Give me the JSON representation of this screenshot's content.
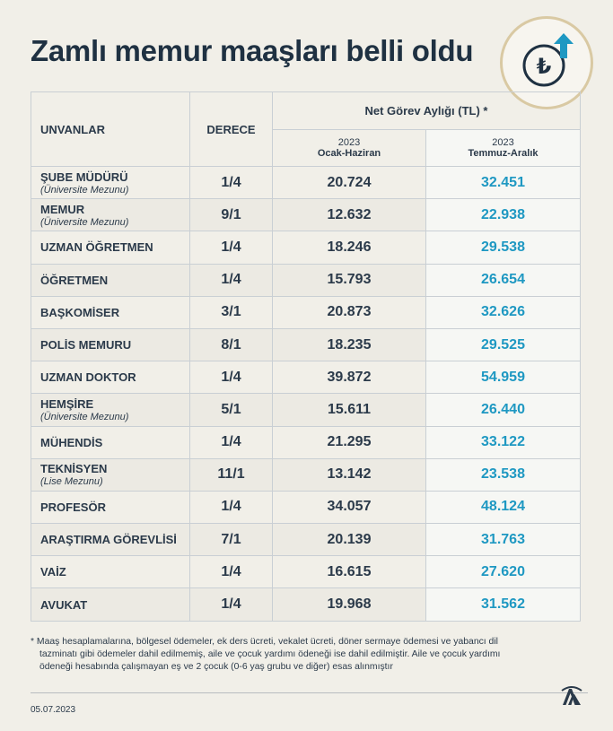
{
  "header": {
    "title": "Zamlı memur maaşları belli oldu"
  },
  "badge": {
    "symbol": "₺",
    "icon": "lira-up-icon",
    "accent": "#1e98c2"
  },
  "table": {
    "col_title": "UNVANLAR",
    "col_grade": "DERECE",
    "col_salary_group": "Net Görev Aylığı (TL) *",
    "period1_year": "2023",
    "period1_label": "Ocak-Haziran",
    "period2_year": "2023",
    "period2_label": "Temmuz-Aralık",
    "rows": [
      {
        "title": "ŞUBE MÜDÜRÜ",
        "note": "(Üniversite Mezunu)",
        "grade": "1/4",
        "old": "20.724",
        "new": "32.451"
      },
      {
        "title": "MEMUR",
        "note": "(Üniversite Mezunu)",
        "grade": "9/1",
        "old": "12.632",
        "new": "22.938"
      },
      {
        "title": "UZMAN ÖĞRETMEN",
        "note": "",
        "grade": "1/4",
        "old": "18.246",
        "new": "29.538"
      },
      {
        "title": "ÖĞRETMEN",
        "note": "",
        "grade": "1/4",
        "old": "15.793",
        "new": "26.654"
      },
      {
        "title": "BAŞKOMİSER",
        "note": "",
        "grade": "3/1",
        "old": "20.873",
        "new": "32.626"
      },
      {
        "title": "POLİS MEMURU",
        "note": "",
        "grade": "8/1",
        "old": "18.235",
        "new": "29.525"
      },
      {
        "title": "UZMAN DOKTOR",
        "note": "",
        "grade": "1/4",
        "old": "39.872",
        "new": "54.959"
      },
      {
        "title": "HEMŞİRE",
        "note": "(Üniversite Mezunu)",
        "grade": "5/1",
        "old": "15.611",
        "new": "26.440"
      },
      {
        "title": "MÜHENDİS",
        "note": "",
        "grade": "1/4",
        "old": "21.295",
        "new": "33.122"
      },
      {
        "title": "TEKNİSYEN",
        "note": "(Lise Mezunu)",
        "grade": "11/1",
        "old": "13.142",
        "new": "23.538"
      },
      {
        "title": "PROFESÖR",
        "note": "",
        "grade": "1/4",
        "old": "34.057",
        "new": "48.124"
      },
      {
        "title": "ARAŞTIRMA GÖREVLİSİ",
        "note": "",
        "grade": "7/1",
        "old": "20.139",
        "new": "31.763"
      },
      {
        "title": "VAİZ",
        "note": "",
        "grade": "1/4",
        "old": "16.615",
        "new": "27.620"
      },
      {
        "title": "AVUKAT",
        "note": "",
        "grade": "1/4",
        "old": "19.968",
        "new": "31.562"
      }
    ]
  },
  "footnote": {
    "line1": "* Maaş hesaplamalarına, bölgesel ödemeler, ek ders ücreti, vekalet ücreti, döner sermaye ödemesi ve yabancı dil",
    "line2": "tazminatı gibi ödemeler dahil edilmemiş, aile ve çocuk yardımı ödeneği ise dahil edilmiştir. Aile ve çocuk yardımı",
    "line3": "ödeneği hesabında çalışmayan eş ve 2 çocuk (0-6 yaş grubu ve diğer) esas alınmıştır"
  },
  "footer": {
    "date": "05.07.2023",
    "logo_icon": "aa-logo-icon"
  }
}
